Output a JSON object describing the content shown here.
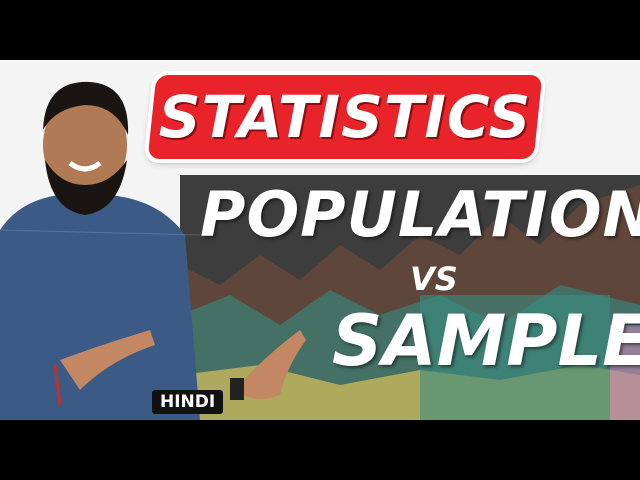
{
  "thumbnail": {
    "badge_title": "STATISTICS",
    "headline_top": "POPULATION",
    "headline_vs": "VS",
    "headline_bottom": "SAMPLE",
    "language_tag": "HINDI"
  },
  "colors": {
    "badge": "#e8232a",
    "panel": "#3d3d3d",
    "text": "#ffffff"
  }
}
